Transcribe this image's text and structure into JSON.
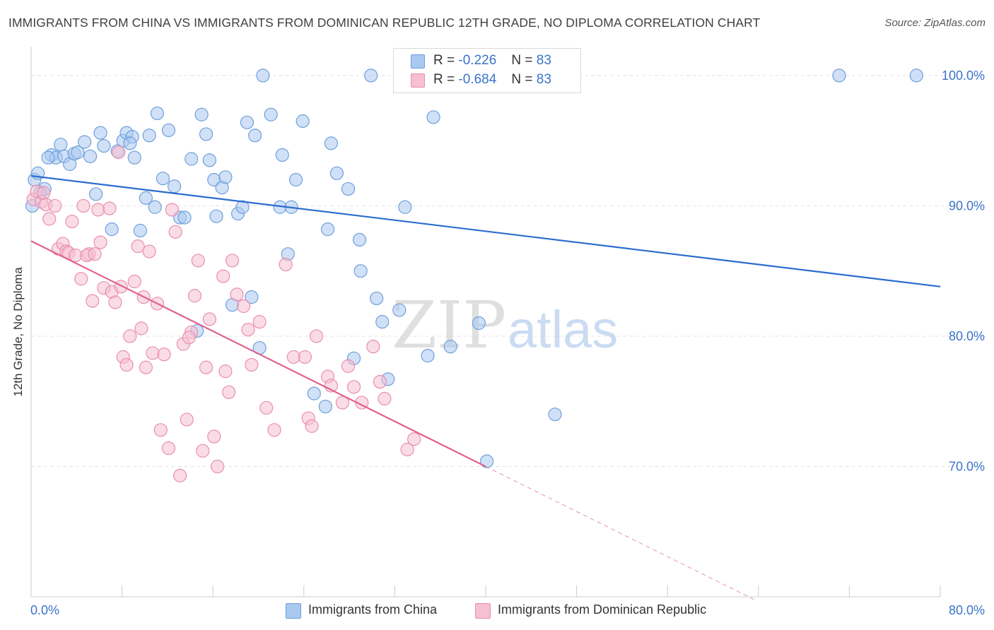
{
  "title": "IMMIGRANTS FROM CHINA VS IMMIGRANTS FROM DOMINICAN REPUBLIC 12TH GRADE, NO DIPLOMA CORRELATION CHART",
  "source": "Source: ZipAtlas.com",
  "watermark": {
    "zip": "ZIP",
    "atlas": "atlas"
  },
  "legend_top": [
    {
      "r_label": "R =",
      "r_value": "-0.226",
      "n_label": "N =",
      "n_value": "83"
    },
    {
      "r_label": "R =",
      "r_value": "-0.684",
      "n_label": "N =",
      "n_value": "83"
    }
  ],
  "colors": {
    "china_fill": "#a9c8f0",
    "china_stroke": "#6f9fdc",
    "china_line": "#2a6ccf",
    "dr_fill": "#f6bfd2",
    "dr_stroke": "#e98eae",
    "dr_line": "#e0628f",
    "tick_label": "#3a74c9",
    "grid": "#e3e3e3"
  },
  "chart_data": {
    "type": "scatter",
    "title": "IMMIGRANTS FROM CHINA VS IMMIGRANTS FROM DOMINICAN REPUBLIC 12TH GRADE, NO DIPLOMA CORRELATION CHART",
    "xlabel": "",
    "ylabel": "12th Grade, No Diploma",
    "xlim": [
      0,
      80
    ],
    "ylim": [
      60,
      102
    ],
    "x_tick_labels": [
      "0.0%",
      "80.0%"
    ],
    "y_ticks": [
      70,
      80,
      90,
      100
    ],
    "y_tick_labels": [
      "70.0%",
      "80.0%",
      "90.0%",
      "100.0%"
    ],
    "grid": true,
    "legend_position": "bottom",
    "series": [
      {
        "name": "Immigrants from China",
        "r": -0.226,
        "n": 83,
        "trend": {
          "x": [
            0,
            80
          ],
          "y": [
            92.3,
            83.8
          ]
        },
        "points": [
          [
            0.1,
            90.0
          ],
          [
            0.3,
            92.0
          ],
          [
            0.6,
            92.5
          ],
          [
            1.2,
            91.3
          ],
          [
            1.8,
            93.9
          ],
          [
            2.2,
            93.7
          ],
          [
            2.6,
            94.7
          ],
          [
            2.9,
            93.8
          ],
          [
            3.4,
            93.2
          ],
          [
            3.8,
            94.0
          ],
          [
            4.1,
            94.1
          ],
          [
            4.7,
            94.9
          ],
          [
            5.2,
            93.8
          ],
          [
            5.7,
            90.9
          ],
          [
            6.1,
            95.6
          ],
          [
            6.4,
            94.6
          ],
          [
            7.1,
            88.2
          ],
          [
            7.6,
            94.2
          ],
          [
            8.1,
            95.0
          ],
          [
            8.4,
            95.6
          ],
          [
            8.9,
            95.3
          ],
          [
            9.1,
            93.7
          ],
          [
            9.6,
            88.1
          ],
          [
            10.1,
            90.6
          ],
          [
            10.4,
            95.4
          ],
          [
            10.9,
            89.9
          ],
          [
            11.1,
            97.1
          ],
          [
            11.6,
            92.1
          ],
          [
            12.1,
            95.8
          ],
          [
            12.6,
            91.5
          ],
          [
            13.1,
            89.1
          ],
          [
            13.5,
            89.1
          ],
          [
            14.1,
            93.6
          ],
          [
            14.6,
            80.4
          ],
          [
            15.0,
            97.0
          ],
          [
            15.4,
            95.5
          ],
          [
            15.7,
            93.5
          ],
          [
            16.1,
            92.0
          ],
          [
            16.3,
            89.2
          ],
          [
            16.8,
            91.4
          ],
          [
            17.1,
            92.2
          ],
          [
            17.7,
            82.4
          ],
          [
            18.2,
            89.4
          ],
          [
            18.6,
            89.9
          ],
          [
            19.0,
            96.4
          ],
          [
            19.4,
            83.0
          ],
          [
            19.7,
            95.4
          ],
          [
            20.1,
            79.1
          ],
          [
            20.4,
            100.0
          ],
          [
            21.1,
            97.0
          ],
          [
            21.9,
            89.9
          ],
          [
            22.1,
            93.9
          ],
          [
            22.6,
            86.3
          ],
          [
            22.9,
            89.9
          ],
          [
            23.3,
            92.0
          ],
          [
            23.9,
            96.5
          ],
          [
            24.9,
            75.6
          ],
          [
            25.9,
            74.6
          ],
          [
            26.1,
            88.2
          ],
          [
            26.4,
            94.8
          ],
          [
            26.9,
            92.5
          ],
          [
            27.9,
            91.3
          ],
          [
            28.4,
            78.3
          ],
          [
            28.9,
            87.4
          ],
          [
            29.0,
            85.0
          ],
          [
            29.9,
            100.0
          ],
          [
            30.4,
            82.9
          ],
          [
            30.9,
            81.1
          ],
          [
            31.4,
            76.7
          ],
          [
            32.4,
            82.0
          ],
          [
            32.9,
            89.9
          ],
          [
            33.9,
            99.5
          ],
          [
            34.9,
            78.5
          ],
          [
            35.4,
            96.8
          ],
          [
            36.9,
            79.2
          ],
          [
            39.4,
            81.0
          ],
          [
            40.1,
            70.4
          ],
          [
            46.1,
            74.0
          ],
          [
            71.1,
            100.0
          ],
          [
            77.9,
            100.0
          ],
          [
            0.8,
            91.0
          ],
          [
            1.5,
            93.7
          ],
          [
            8.7,
            94.8
          ]
        ]
      },
      {
        "name": "Immigrants from Dominican Republic",
        "r": -0.684,
        "n": 83,
        "trend": {
          "x": [
            0,
            40
          ],
          "y": [
            87.3,
            70.0
          ]
        },
        "trend_extension": {
          "x": [
            40,
            63.6
          ],
          "y": [
            70.0,
            59.8
          ]
        },
        "points": [
          [
            0.2,
            90.5
          ],
          [
            0.5,
            91.1
          ],
          [
            0.9,
            90.3
          ],
          [
            1.3,
            90.1
          ],
          [
            1.6,
            89.0
          ],
          [
            2.1,
            90.0
          ],
          [
            2.4,
            86.7
          ],
          [
            2.8,
            87.1
          ],
          [
            3.1,
            86.5
          ],
          [
            3.3,
            86.4
          ],
          [
            3.6,
            88.8
          ],
          [
            3.9,
            86.2
          ],
          [
            4.4,
            84.4
          ],
          [
            4.6,
            90.0
          ],
          [
            5.1,
            86.3
          ],
          [
            5.4,
            82.7
          ],
          [
            5.9,
            89.7
          ],
          [
            6.1,
            87.2
          ],
          [
            6.4,
            83.7
          ],
          [
            6.9,
            89.8
          ],
          [
            7.1,
            83.4
          ],
          [
            7.4,
            82.6
          ],
          [
            7.7,
            94.1
          ],
          [
            8.1,
            78.4
          ],
          [
            8.4,
            77.8
          ],
          [
            8.7,
            80.0
          ],
          [
            9.1,
            84.2
          ],
          [
            9.4,
            86.9
          ],
          [
            9.7,
            80.6
          ],
          [
            10.1,
            77.6
          ],
          [
            10.4,
            86.5
          ],
          [
            10.7,
            78.7
          ],
          [
            11.1,
            82.5
          ],
          [
            11.4,
            72.8
          ],
          [
            11.7,
            78.6
          ],
          [
            12.1,
            71.4
          ],
          [
            12.4,
            89.7
          ],
          [
            12.7,
            88.0
          ],
          [
            13.1,
            69.3
          ],
          [
            13.4,
            79.4
          ],
          [
            13.7,
            73.6
          ],
          [
            14.1,
            80.3
          ],
          [
            14.4,
            83.1
          ],
          [
            14.7,
            85.8
          ],
          [
            15.1,
            71.2
          ],
          [
            15.4,
            77.6
          ],
          [
            15.7,
            81.3
          ],
          [
            16.1,
            72.3
          ],
          [
            16.4,
            70.0
          ],
          [
            17.1,
            77.3
          ],
          [
            17.4,
            75.7
          ],
          [
            17.7,
            85.8
          ],
          [
            18.1,
            83.2
          ],
          [
            18.7,
            82.3
          ],
          [
            19.1,
            80.5
          ],
          [
            19.4,
            77.8
          ],
          [
            20.1,
            81.1
          ],
          [
            20.7,
            74.5
          ],
          [
            21.4,
            72.8
          ],
          [
            22.4,
            85.5
          ],
          [
            23.1,
            78.4
          ],
          [
            24.1,
            78.4
          ],
          [
            24.4,
            73.7
          ],
          [
            24.7,
            73.1
          ],
          [
            25.1,
            80.0
          ],
          [
            26.1,
            76.9
          ],
          [
            26.4,
            76.2
          ],
          [
            27.4,
            74.9
          ],
          [
            27.9,
            77.7
          ],
          [
            28.4,
            76.1
          ],
          [
            29.1,
            74.9
          ],
          [
            30.1,
            79.2
          ],
          [
            30.7,
            76.5
          ],
          [
            31.1,
            75.2
          ],
          [
            33.1,
            71.3
          ],
          [
            33.7,
            72.1
          ],
          [
            1.1,
            91.0
          ],
          [
            4.9,
            86.2
          ],
          [
            5.6,
            86.3
          ],
          [
            7.9,
            83.8
          ],
          [
            9.9,
            83.0
          ],
          [
            16.9,
            84.6
          ],
          [
            13.9,
            79.9
          ]
        ]
      }
    ]
  },
  "legend_bottom": [
    {
      "label": "Immigrants from China"
    },
    {
      "label": "Immigrants from Dominican Republic"
    }
  ]
}
